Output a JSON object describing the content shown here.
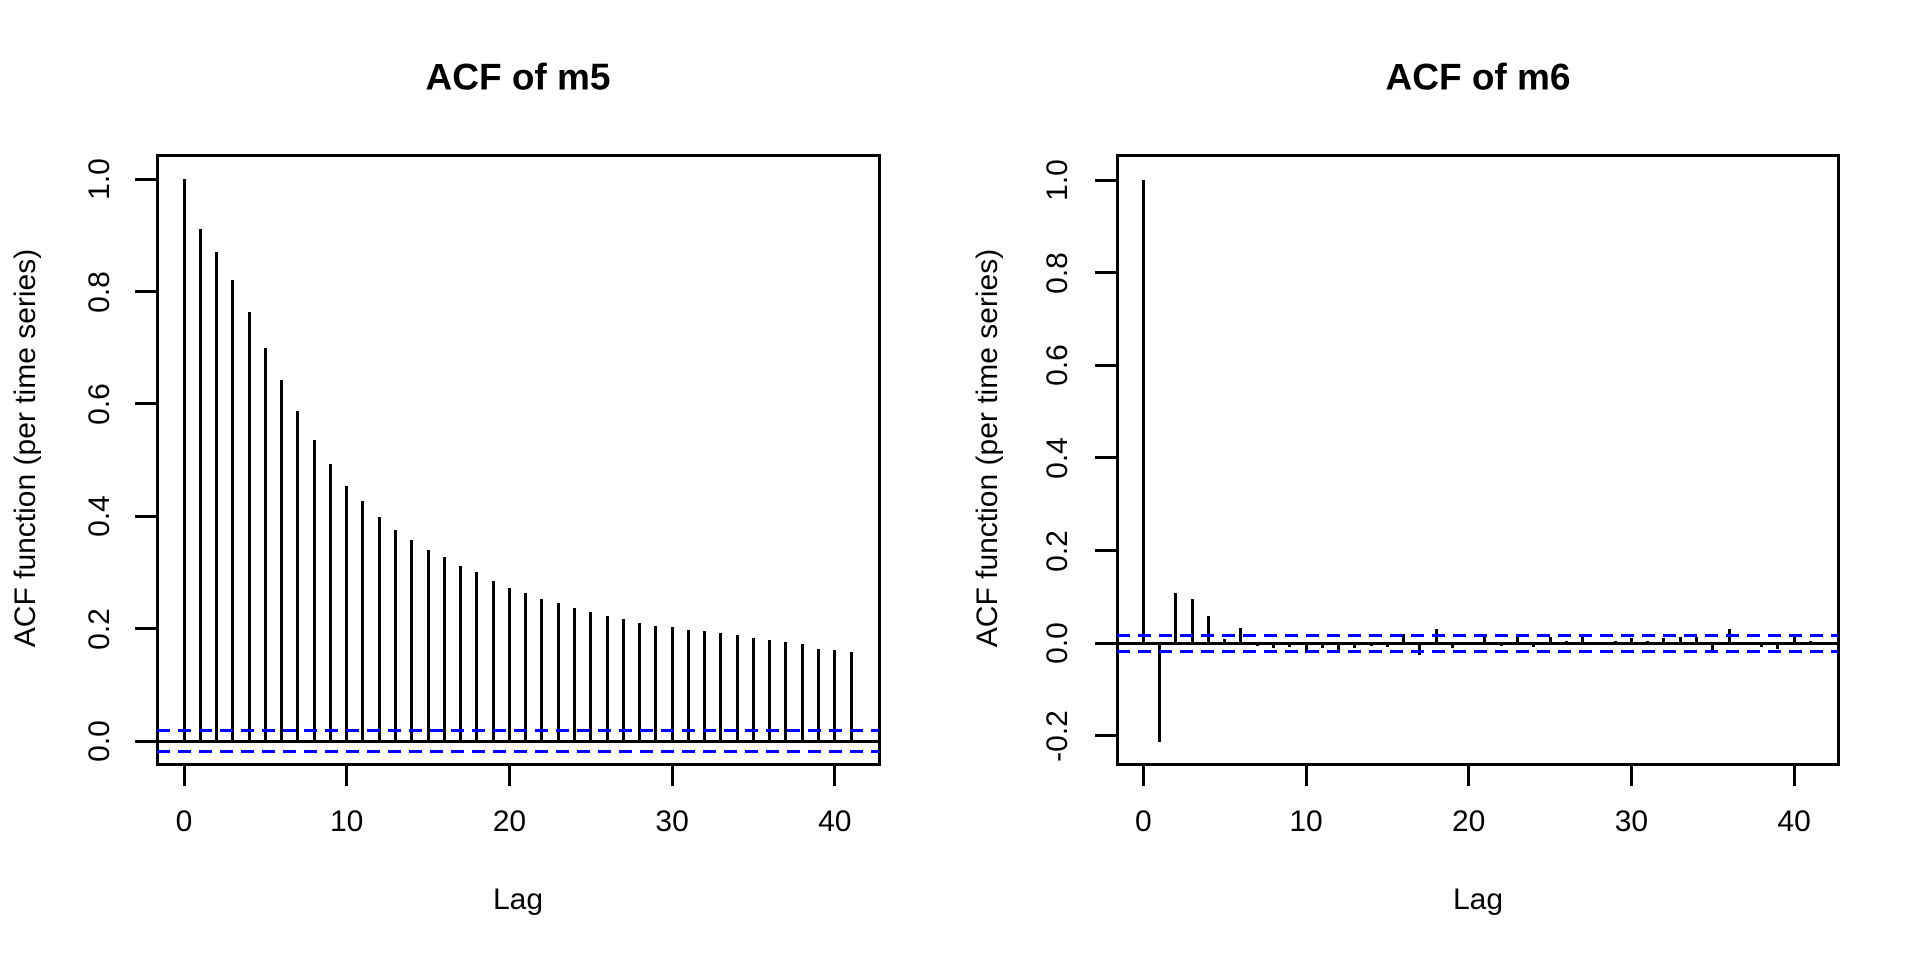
{
  "figure": {
    "background_color": "#ffffff",
    "bar_color": "#000000",
    "axis_color": "#000000",
    "confidence_line_color": "#0000ff"
  },
  "chart_data": [
    {
      "type": "bar",
      "title": "ACF of m5",
      "xlabel": "Lag",
      "ylabel": "ACF function (per time series)",
      "legend": null,
      "grid": false,
      "ylim": [
        -0.04,
        1.04
      ],
      "xlim": [
        -1.5,
        43
      ],
      "yticks": [
        0.0,
        0.2,
        0.4,
        0.6,
        0.8,
        1.0
      ],
      "ytick_labels": [
        "0.0",
        "0.2",
        "0.4",
        "0.6",
        "0.8",
        "1.0"
      ],
      "xticks": [
        0,
        10,
        20,
        30,
        40
      ],
      "xtick_labels": [
        "0",
        "10",
        "20",
        "30",
        "40"
      ],
      "conf_band": 0.018,
      "zero_line": 0.0,
      "lags": [
        0,
        1,
        2,
        3,
        4,
        5,
        6,
        7,
        8,
        9,
        10,
        11,
        12,
        13,
        14,
        15,
        16,
        17,
        18,
        19,
        20,
        21,
        22,
        23,
        24,
        25,
        26,
        27,
        28,
        29,
        30,
        31,
        32,
        33,
        34,
        35,
        36,
        37,
        38,
        39,
        40,
        41
      ],
      "values": [
        1.0,
        0.911,
        0.871,
        0.821,
        0.763,
        0.7,
        0.642,
        0.587,
        0.536,
        0.494,
        0.454,
        0.427,
        0.399,
        0.375,
        0.357,
        0.34,
        0.327,
        0.311,
        0.3,
        0.285,
        0.273,
        0.263,
        0.253,
        0.245,
        0.236,
        0.229,
        0.222,
        0.217,
        0.21,
        0.205,
        0.203,
        0.198,
        0.196,
        0.192,
        0.188,
        0.184,
        0.18,
        0.176,
        0.172,
        0.164,
        0.162,
        0.158
      ]
    },
    {
      "type": "bar",
      "title": "ACF of m6",
      "xlabel": "Lag",
      "ylabel": "ACF function (per time series)",
      "legend": null,
      "grid": false,
      "ylim": [
        -0.26,
        1.05
      ],
      "xlim": [
        -1.5,
        43
      ],
      "yticks": [
        -0.2,
        0.0,
        0.2,
        0.4,
        0.6,
        0.8,
        1.0
      ],
      "ytick_labels": [
        "-0.2",
        "0.0",
        "0.2",
        "0.4",
        "0.6",
        "0.8",
        "1.0"
      ],
      "xticks": [
        0,
        10,
        20,
        30,
        40
      ],
      "xtick_labels": [
        "0",
        "10",
        "20",
        "30",
        "40"
      ],
      "conf_band": 0.017,
      "zero_line": 0.0,
      "lags": [
        0,
        1,
        2,
        3,
        4,
        5,
        6,
        7,
        8,
        9,
        10,
        11,
        12,
        13,
        14,
        15,
        16,
        17,
        18,
        19,
        20,
        21,
        22,
        23,
        24,
        25,
        26,
        27,
        28,
        29,
        30,
        31,
        32,
        33,
        34,
        35,
        36,
        37,
        38,
        39,
        40,
        41
      ],
      "values": [
        1.0,
        -0.213,
        0.108,
        0.095,
        0.059,
        0.009,
        0.034,
        -0.005,
        -0.01,
        -0.008,
        -0.022,
        -0.011,
        -0.015,
        -0.011,
        -0.006,
        -0.007,
        0.021,
        -0.026,
        0.031,
        -0.01,
        -0.003,
        0.016,
        -0.006,
        0.014,
        -0.007,
        0.014,
        0.004,
        0.014,
        -0.004,
        0.006,
        0.012,
        0.004,
        0.011,
        0.014,
        0.014,
        -0.014,
        0.03,
        -0.004,
        -0.009,
        -0.013,
        0.014,
        0.004
      ]
    }
  ]
}
